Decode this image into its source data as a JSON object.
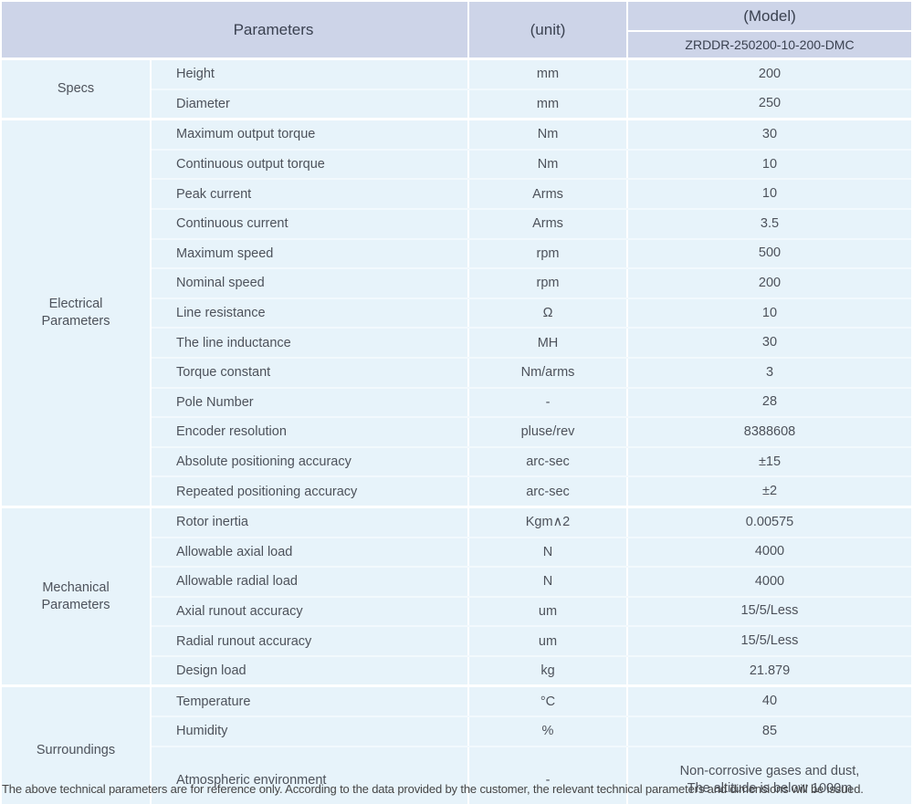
{
  "colors": {
    "header_bg": "#cdd4e8",
    "header_text": "#3a4150",
    "body_bg": "#e7f3fa",
    "body_text": "#4d525b",
    "row_line": "#f2f9fd",
    "grid_line": "#ffffff"
  },
  "table": {
    "header": {
      "parameters": "Parameters",
      "unit": "(unit)",
      "model": "(Model)",
      "model_value": "ZRDDR-250200-10-200-DMC"
    },
    "sections": [
      {
        "category": "Specs",
        "rows": [
          {
            "param": "Height",
            "unit": "mm",
            "value": "200"
          },
          {
            "param": "Diameter",
            "unit": "mm",
            "value": "250"
          }
        ]
      },
      {
        "category": "Electrical\nParameters",
        "rows": [
          {
            "param": "Maximum output torque",
            "unit": "Nm",
            "value": "30"
          },
          {
            "param": "Continuous output torque",
            "unit": "Nm",
            "value": "10"
          },
          {
            "param": "Peak current",
            "unit": "Arms",
            "value": "10"
          },
          {
            "param": "Continuous current",
            "unit": "Arms",
            "value": "3.5"
          },
          {
            "param": "Maximum speed",
            "unit": "rpm",
            "value": "500"
          },
          {
            "param": "Nominal speed",
            "unit": "rpm",
            "value": "200"
          },
          {
            "param": "Line resistance",
            "unit": "Ω",
            "value": "10"
          },
          {
            "param": "The line inductance",
            "unit": "MH",
            "value": "30"
          },
          {
            "param": "Torque constant",
            "unit": "Nm/arms",
            "value": "3"
          },
          {
            "param": "Pole Number",
            "unit": "-",
            "value": "28"
          },
          {
            "param": "Encoder resolution",
            "unit": "pluse/rev",
            "value": "8388608"
          },
          {
            "param": "Absolute positioning accuracy",
            "unit": "arc-sec",
            "value": "±15"
          },
          {
            "param": "Repeated positioning accuracy",
            "unit": "arc-sec",
            "value": "±2"
          }
        ]
      },
      {
        "category": "Mechanical\nParameters",
        "rows": [
          {
            "param": "Rotor inertia",
            "unit": "Kgm∧2",
            "value": "0.00575"
          },
          {
            "param": "Allowable axial load",
            "unit": "N",
            "value": "4000"
          },
          {
            "param": "Allowable radial load",
            "unit": "N",
            "value": "4000"
          },
          {
            "param": "Axial runout accuracy",
            "unit": "um",
            "value": "15/5/Less"
          },
          {
            "param": "Radial runout accuracy",
            "unit": "um",
            "value": "15/5/Less"
          },
          {
            "param": "Design load",
            "unit": "kg",
            "value": "21.879"
          }
        ]
      },
      {
        "category": "Surroundings",
        "rows": [
          {
            "param": "Temperature",
            "unit": "°C",
            "value": "40"
          },
          {
            "param": "Humidity",
            "unit": "%",
            "value": "85"
          },
          {
            "param": "Atmospheric environment",
            "unit": "-",
            "value": "Non-corrosive gases and dust,\nThe altitude is below 1000m",
            "tall": true
          }
        ]
      }
    ]
  },
  "footer": {
    "note": "The above technical parameters are for reference only. According to the data provided by the customer, the relevant technical parameters and dimensions will be issued."
  }
}
